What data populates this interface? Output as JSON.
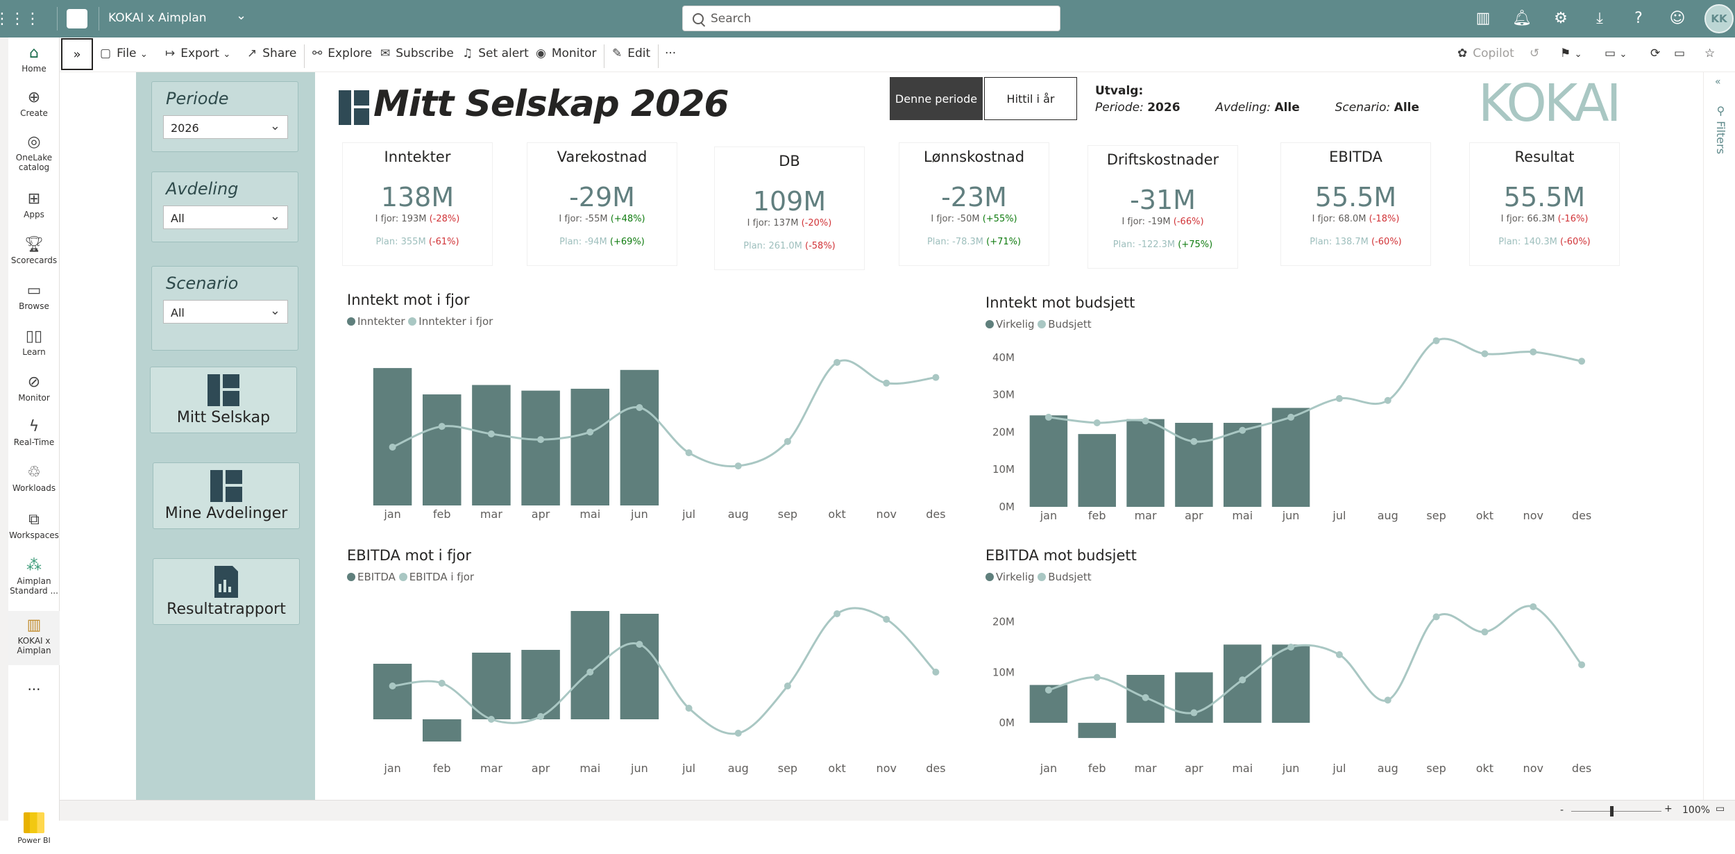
{
  "topbar": {
    "app_name": "KOKAI x Aimplan",
    "search_placeholder": "Search"
  },
  "leftnav": {
    "items": [
      {
        "label": "Home",
        "icon": "home-icon"
      },
      {
        "label": "Create",
        "icon": "plus-circle-icon"
      },
      {
        "label": "OneLake catalog",
        "icon": "onelake-icon"
      },
      {
        "label": "Apps",
        "icon": "apps-icon"
      },
      {
        "label": "Scorecards",
        "icon": "trophy-icon"
      },
      {
        "label": "Browse",
        "icon": "folder-icon"
      },
      {
        "label": "Learn",
        "icon": "book-icon"
      },
      {
        "label": "Monitor",
        "icon": "monitor-icon"
      },
      {
        "label": "Real-Time",
        "icon": "lightning-icon"
      },
      {
        "label": "Workloads",
        "icon": "workloads-icon"
      },
      {
        "label": "Workspaces",
        "icon": "workspaces-icon"
      },
      {
        "label": "Aimplan Standard ...",
        "icon": "aimplan-icon"
      },
      {
        "label": "KOKAI x Aimplan",
        "icon": "report-icon"
      }
    ],
    "more": "...",
    "powerbi_label": "Power BI"
  },
  "commandbar": {
    "file": "File",
    "export": "Export",
    "share": "Share",
    "explore": "Explore",
    "subscribe": "Subscribe",
    "set_alert": "Set alert",
    "monitor": "Monitor",
    "edit": "Edit",
    "more": "···",
    "copilot": "Copilot"
  },
  "sidebar": {
    "periode": {
      "label": "Periode",
      "value": "2026"
    },
    "avdeling": {
      "label": "Avdeling",
      "value": "All"
    },
    "scenario": {
      "label": "Scenario",
      "value": "All"
    },
    "nav_buttons": [
      "Mitt Selskap",
      "Mine Avdelinger",
      "Resultatrapport"
    ]
  },
  "header": {
    "title": "Mitt Selskap 2026",
    "toggle_active": "Denne periode",
    "toggle_inactive": "Hittil i år",
    "utvalg_label": "Utvalg:",
    "periode_label": "Periode:",
    "periode_value": "2026",
    "avdeling_label": "Avdeling:",
    "avdeling_value": "Alle",
    "scenario_label": "Scenario:",
    "scenario_value": "Alle",
    "logo_text": "KOKAI"
  },
  "kpis": [
    {
      "title": "Inntekter",
      "value": "138M",
      "ly_label": "I fjor:",
      "ly_value": "193M",
      "ly_delta": "(-28%)",
      "ly_color": "red",
      "plan_label": "Plan:",
      "plan_value": "355M",
      "plan_delta": "(-61%)",
      "plan_color": "red"
    },
    {
      "title": "Varekostnad",
      "value": "-29M",
      "ly_label": "I fjor:",
      "ly_value": "-55M",
      "ly_delta": "(+48%)",
      "ly_color": "grn",
      "plan_label": "Plan:",
      "plan_value": "-94M",
      "plan_delta": "(+69%)",
      "plan_color": "grn"
    },
    {
      "title": "DB",
      "value": "109M",
      "ly_label": "I fjor:",
      "ly_value": "137M",
      "ly_delta": "(-20%)",
      "ly_color": "red",
      "plan_label": "Plan:",
      "plan_value": "261.0M",
      "plan_delta": "(-58%)",
      "plan_color": "red"
    },
    {
      "title": "Lønnskostnad",
      "value": "-23M",
      "ly_label": "I fjor:",
      "ly_value": "-50M",
      "ly_delta": "(+55%)",
      "ly_color": "grn",
      "plan_label": "Plan:",
      "plan_value": "-78.3M",
      "plan_delta": "(+71%)",
      "plan_color": "grn"
    },
    {
      "title": "Driftskostnader",
      "value": "-31M",
      "ly_label": "I fjor:",
      "ly_value": "-19M",
      "ly_delta": "(-66%)",
      "ly_color": "red",
      "plan_label": "Plan:",
      "plan_value": "-122.3M",
      "plan_delta": "(+75%)",
      "plan_color": "grn"
    },
    {
      "title": "EBITDA",
      "value": "55.5M",
      "ly_label": "I fjor:",
      "ly_value": "68.0M",
      "ly_delta": "(-18%)",
      "ly_color": "red",
      "plan_label": "Plan:",
      "plan_value": "138.7M",
      "plan_delta": "(-60%)",
      "plan_color": "red"
    },
    {
      "title": "Resultat",
      "value": "55.5M",
      "ly_label": "I fjor:",
      "ly_value": "66.3M",
      "ly_delta": "(-16%)",
      "ly_color": "red",
      "plan_label": "Plan:",
      "plan_value": "140.3M",
      "plan_delta": "(-60%)",
      "plan_color": "red"
    }
  ],
  "filters_label": "Filters",
  "statusbar": {
    "zoom": "100%",
    "minus": "-",
    "plus": "+"
  },
  "colors": {
    "bar": "#5f7f7c",
    "line": "#a9c7c3",
    "accent": "#5f8a8b"
  },
  "chart_data": [
    {
      "type": "bar",
      "title": "Inntekt mot i fjor",
      "categories": [
        "jan",
        "feb",
        "mar",
        "apr",
        "mai",
        "jun",
        "jul",
        "aug",
        "sep",
        "okt",
        "nov",
        "des"
      ],
      "series": [
        {
          "name": "Inntekter",
          "kind": "bar",
          "values": [
            36.5,
            29.5,
            32.0,
            30.5,
            31.0,
            36.0,
            null,
            null,
            null,
            null,
            null,
            null
          ]
        },
        {
          "name": "Inntekter i fjor",
          "kind": "line",
          "values": [
            15.5,
            21.0,
            19.0,
            17.5,
            19.5,
            26.0,
            14.0,
            10.5,
            17.0,
            38.0,
            32.5,
            34.0
          ]
        }
      ],
      "ylim": [
        0,
        45
      ]
    },
    {
      "type": "bar",
      "title": "Inntekt mot budsjett",
      "categories": [
        "jan",
        "feb",
        "mar",
        "apr",
        "mai",
        "jun",
        "jul",
        "aug",
        "sep",
        "okt",
        "nov",
        "des"
      ],
      "series": [
        {
          "name": "Virkelig",
          "kind": "bar",
          "values": [
            24.5,
            19.5,
            23.5,
            22.5,
            22.5,
            26.5,
            null,
            null,
            null,
            null,
            null,
            null
          ]
        },
        {
          "name": "Budsjett",
          "kind": "line",
          "values": [
            24.0,
            22.5,
            23.0,
            17.5,
            20.5,
            24.0,
            29.0,
            28.5,
            44.5,
            41.0,
            41.5,
            39.0
          ]
        }
      ],
      "yticks": [
        "0M",
        "10M",
        "20M",
        "30M",
        "40M"
      ],
      "ylim": [
        0,
        45
      ]
    },
    {
      "type": "bar",
      "title": "EBITDA mot i fjor",
      "categories": [
        "jan",
        "feb",
        "mar",
        "apr",
        "mai",
        "jun",
        "jul",
        "aug",
        "sep",
        "okt",
        "nov",
        "des"
      ],
      "series": [
        {
          "name": "EBITDA",
          "kind": "bar",
          "values": [
            10.0,
            -4.0,
            12.0,
            12.5,
            19.5,
            19.0,
            null,
            null,
            null,
            null,
            null,
            null
          ]
        },
        {
          "name": "EBITDA i fjor",
          "kind": "line",
          "values": [
            6.0,
            6.5,
            0.0,
            0.5,
            8.5,
            13.5,
            2.0,
            -2.5,
            6.0,
            19.0,
            18.0,
            8.5
          ]
        }
      ],
      "ylim": [
        -7,
        23
      ]
    },
    {
      "type": "bar",
      "title": "EBITDA mot budsjett",
      "categories": [
        "jan",
        "feb",
        "mar",
        "apr",
        "mai",
        "jun",
        "jul",
        "aug",
        "sep",
        "okt",
        "nov",
        "des"
      ],
      "series": [
        {
          "name": "Virkelig",
          "kind": "bar",
          "values": [
            7.5,
            -3.0,
            9.5,
            10.0,
            15.5,
            15.5,
            null,
            null,
            null,
            null,
            null,
            null
          ]
        },
        {
          "name": "Budsjett",
          "kind": "line",
          "values": [
            6.5,
            9.0,
            5.0,
            2.0,
            8.5,
            15.0,
            13.5,
            4.5,
            21.0,
            18.0,
            23.0,
            11.5
          ]
        }
      ],
      "yticks": [
        "0M",
        "10M",
        "20M"
      ],
      "ylim": [
        -7,
        26
      ]
    }
  ]
}
